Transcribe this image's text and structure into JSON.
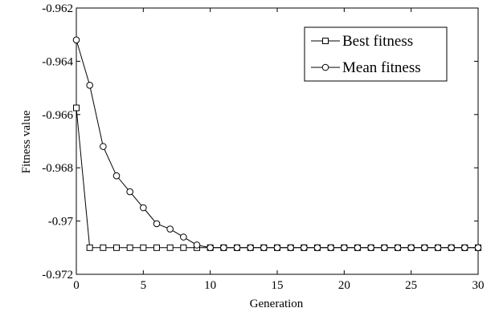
{
  "chart_data": {
    "type": "line",
    "title": "",
    "xlabel": "Generation",
    "ylabel": "Fitness value",
    "xlim": [
      0,
      30
    ],
    "ylim": [
      -0.972,
      -0.962
    ],
    "x_ticks": [
      0,
      5,
      10,
      15,
      20,
      25,
      30
    ],
    "x_tick_labels": [
      "0",
      "5",
      "10",
      "15",
      "20",
      "25",
      "30"
    ],
    "y_ticks": [
      -0.972,
      -0.97,
      -0.968,
      -0.966,
      -0.964,
      -0.962
    ],
    "y_tick_labels": [
      "-0.972",
      "-0.97",
      "-0.968",
      "-0.966",
      "-0.964",
      "-0.962"
    ],
    "grid": false,
    "legend_position": "top-right",
    "x": [
      0,
      1,
      2,
      3,
      4,
      5,
      6,
      7,
      8,
      9,
      10,
      11,
      12,
      13,
      14,
      15,
      16,
      17,
      18,
      19,
      20,
      21,
      22,
      23,
      24,
      25,
      26,
      27,
      28,
      29,
      30
    ],
    "series": [
      {
        "name": "Best fitness",
        "marker": "square",
        "color": "#000000",
        "values": [
          -0.96575,
          -0.971,
          -0.971,
          -0.971,
          -0.971,
          -0.971,
          -0.971,
          -0.971,
          -0.971,
          -0.971,
          -0.971,
          -0.971,
          -0.971,
          -0.971,
          -0.971,
          -0.971,
          -0.971,
          -0.971,
          -0.971,
          -0.971,
          -0.971,
          -0.971,
          -0.971,
          -0.971,
          -0.971,
          -0.971,
          -0.971,
          -0.971,
          -0.971,
          -0.971,
          -0.971
        ]
      },
      {
        "name": "Mean fitness",
        "marker": "circle",
        "color": "#000000",
        "values": [
          -0.9632,
          -0.9649,
          -0.9672,
          -0.9683,
          -0.9689,
          -0.9695,
          -0.9701,
          -0.9703,
          -0.9706,
          -0.9709,
          -0.971,
          -0.971,
          -0.971,
          -0.971,
          -0.971,
          -0.971,
          -0.971,
          -0.971,
          -0.971,
          -0.971,
          -0.971,
          -0.971,
          -0.971,
          -0.971,
          -0.971,
          -0.971,
          -0.971,
          -0.971,
          -0.971,
          -0.971,
          -0.971
        ]
      }
    ]
  }
}
